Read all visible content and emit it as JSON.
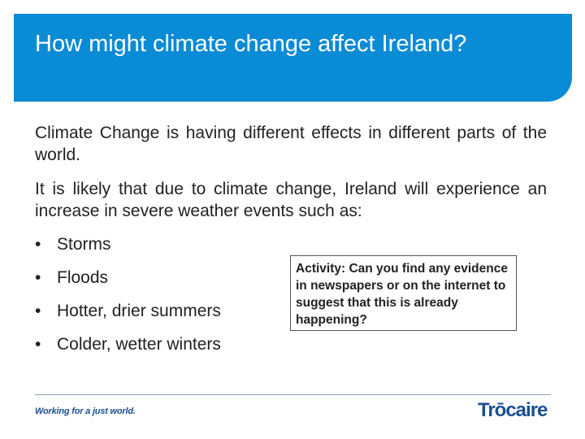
{
  "header": {
    "title": "How might climate change affect Ireland?"
  },
  "content": {
    "paragraph1": "Climate Change is having different effects in different parts of the world.",
    "paragraph2": "It is likely that due to climate change, Ireland will experience an increase in severe weather events such as:",
    "bullets": [
      "Storms",
      "Floods",
      "Hotter, drier summers",
      "Colder, wetter winters"
    ]
  },
  "activity": {
    "text": "Activity: Can you find any evidence in newspapers or on the internet to suggest that this is already happening?"
  },
  "footer": {
    "tagline": "Working for a just world.",
    "brand": "Trōcaire"
  },
  "colors": {
    "header_bg": "#0a8bd6",
    "brand_blue": "#1b4f8f"
  }
}
